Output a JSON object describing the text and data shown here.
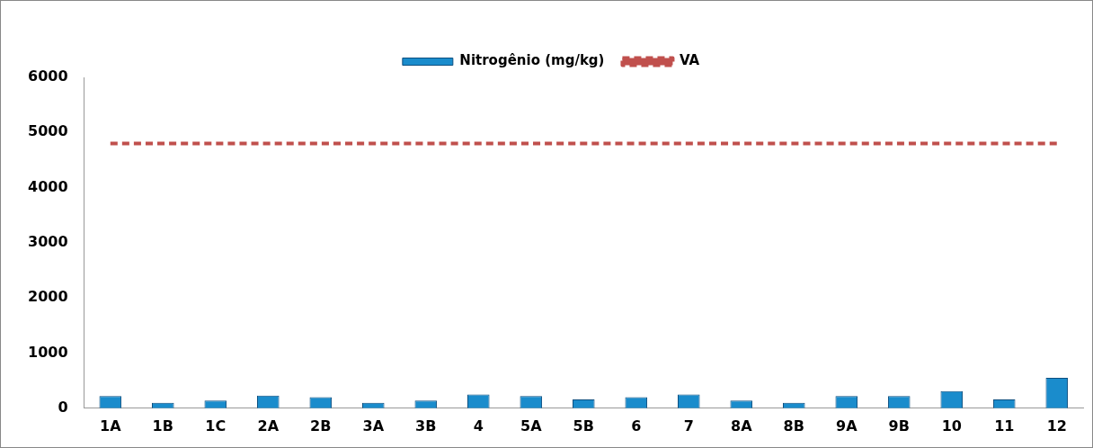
{
  "chart_data": {
    "type": "bar",
    "categories": [
      "1A",
      "1B",
      "1C",
      "2A",
      "2B",
      "3A",
      "3B",
      "4",
      "5A",
      "5B",
      "6",
      "7",
      "8A",
      "8B",
      "9A",
      "9B",
      "10",
      "11",
      "12"
    ],
    "series": [
      {
        "name": "Nitrogênio (mg/kg)",
        "color": "#1a8ccc",
        "values": [
          220,
          100,
          140,
          230,
          200,
          100,
          140,
          250,
          220,
          160,
          200,
          250,
          140,
          100,
          220,
          220,
          310,
          160,
          550
        ]
      },
      {
        "name": "VA",
        "type": "line",
        "color": "#c0504d",
        "line_style": "dashed",
        "marker": "none",
        "values": [
          4800,
          4800,
          4800,
          4800,
          4800,
          4800,
          4800,
          4800,
          4800,
          4800,
          4800,
          4800,
          4800,
          4800,
          4800,
          4800,
          4800,
          4800,
          4800
        ]
      }
    ],
    "ylim": [
      0,
      6000
    ],
    "yticks": [
      0,
      1000,
      2000,
      3000,
      4000,
      5000,
      6000
    ],
    "grid": false,
    "legend": "top"
  }
}
